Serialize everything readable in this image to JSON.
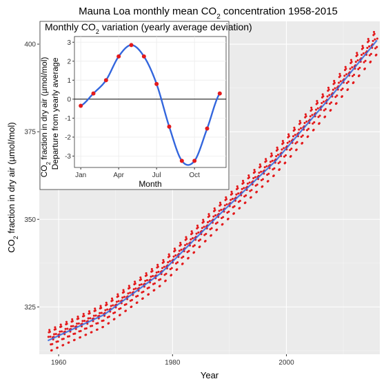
{
  "chart_data": [
    {
      "type": "scatter",
      "title": "Mauna Loa monthly mean CO2 concentration 1958-2015",
      "title_parts": {
        "pre": "Mauna Loa monthly mean CO",
        "sub": "2",
        "post": " concentration 1958-2015"
      },
      "xlabel": "Year",
      "ylabel": "CO2 fraction in dry air (µmol/mol)",
      "ylabel_parts": {
        "pre": "CO",
        "sub": "2",
        "post": " fraction in dry air (µmol/mol)"
      },
      "xlim": [
        1956.6,
        2016.4
      ],
      "ylim": [
        311.5,
        406.5
      ],
      "x_ticks": [
        {
          "value": 1960,
          "label": "1960"
        },
        {
          "value": 1980,
          "label": "1980"
        },
        {
          "value": 2000,
          "label": "2000"
        }
      ],
      "y_ticks": [
        {
          "value": 325,
          "label": "325"
        },
        {
          "value": 350,
          "label": "350"
        },
        {
          "value": 375,
          "label": "375"
        },
        {
          "value": 400,
          "label": "400"
        }
      ],
      "grid": true,
      "background": "#ebebeb",
      "series": [
        {
          "kind": "points",
          "color": "#e31a1c"
        },
        {
          "kind": "smooth-line",
          "color": "#3366dd"
        }
      ],
      "trend_model": {
        "x": [
          1958,
          1968,
          1978,
          1988,
          1998,
          2008,
          2015.5
        ],
        "y": [
          315.3,
          322.8,
          334.7,
          351.0,
          366.5,
          385.4,
          400.3
        ]
      },
      "seasonal_cycle_amplitude_ref": "inset"
    },
    {
      "type": "line",
      "title": "Monthly CO2 variation (yearly average deviation)",
      "title_parts": {
        "pre": "Monthly CO",
        "sub": "2",
        "post": " variation (yearly average deviation)"
      },
      "xlabel": "Month",
      "ylabel_line1_parts": {
        "pre": "CO",
        "sub": "2",
        "post": " fraction in dry air (µmol/mol)"
      },
      "ylabel_line2": "Departure from yearly average",
      "x": [
        1,
        2,
        3,
        4,
        5,
        6,
        7,
        8,
        9,
        10,
        11,
        12
      ],
      "values": [
        -0.35,
        0.3,
        1.0,
        2.25,
        2.85,
        2.25,
        0.8,
        -1.45,
        -3.25,
        -3.25,
        -1.55,
        0.3
      ],
      "xlim": [
        0.5,
        12.5
      ],
      "ylim": [
        -3.6,
        3.3
      ],
      "x_ticks": [
        {
          "value": 1,
          "label": "Jan"
        },
        {
          "value": 4,
          "label": "Apr"
        },
        {
          "value": 7,
          "label": "Jul"
        },
        {
          "value": 10,
          "label": "Oct"
        }
      ],
      "y_ticks": [
        {
          "value": -3,
          "label": "-3"
        },
        {
          "value": -2,
          "label": "-2"
        },
        {
          "value": -1,
          "label": "-1"
        },
        {
          "value": 0,
          "label": "0"
        },
        {
          "value": 1,
          "label": "1"
        },
        {
          "value": 2,
          "label": "2"
        },
        {
          "value": 3,
          "label": "3"
        }
      ],
      "zero_line": true,
      "point_color": "#e31a1c",
      "line_color": "#3366dd"
    }
  ]
}
